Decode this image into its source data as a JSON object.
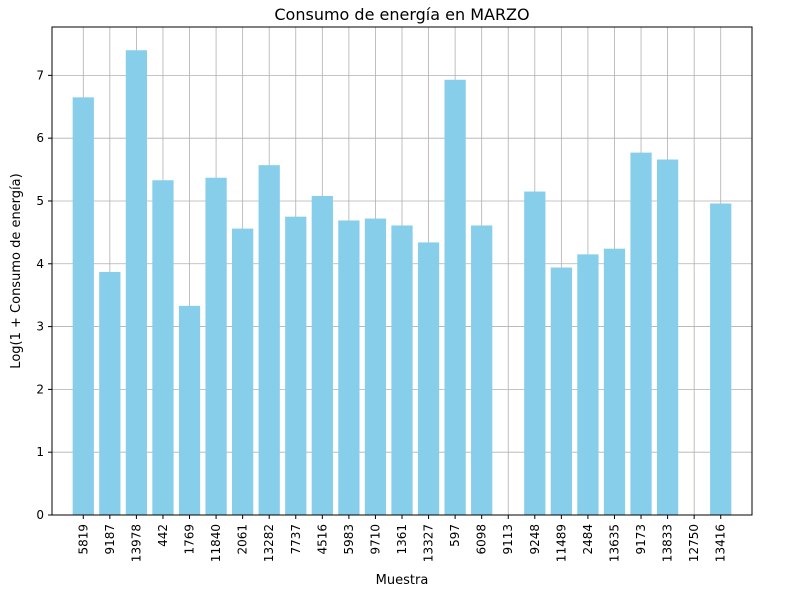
{
  "chart_data": {
    "type": "bar",
    "title": "Consumo de energía en MARZO",
    "xlabel": "Muestra",
    "ylabel": "Log(1 + Consumo de energía)",
    "categories": [
      "5819",
      "9187",
      "13978",
      "442",
      "1769",
      "11840",
      "2061",
      "13282",
      "7737",
      "4516",
      "5983",
      "9710",
      "1361",
      "13327",
      "597",
      "6098",
      "9113",
      "9248",
      "11489",
      "2484",
      "13635",
      "9173",
      "13833",
      "12750",
      "13416"
    ],
    "values": [
      6.65,
      3.87,
      7.4,
      5.33,
      3.33,
      5.37,
      4.56,
      5.57,
      4.75,
      5.08,
      4.69,
      4.72,
      4.61,
      4.34,
      6.93,
      4.61,
      0,
      5.15,
      3.94,
      4.15,
      4.24,
      5.77,
      5.66,
      0,
      4.96
    ],
    "ylim": [
      0,
      7.77
    ],
    "yticks": [
      0,
      1,
      2,
      3,
      4,
      5,
      6,
      7
    ],
    "grid": true,
    "color": "#87ceeb"
  }
}
